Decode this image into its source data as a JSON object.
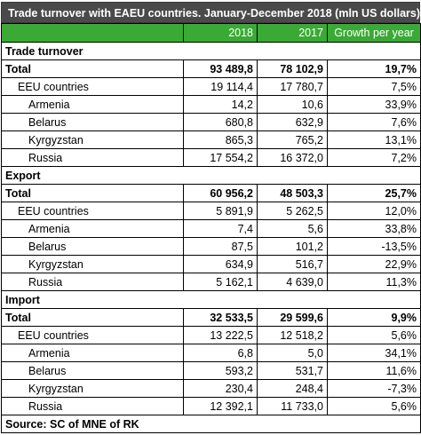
{
  "title": "Trade turnover with EAEU countries. January-December 2018 (mln US dollars)",
  "columns": [
    "",
    "2018",
    "2017",
    "Growth per year"
  ],
  "sections": [
    {
      "name": "Trade turnover",
      "rows": [
        {
          "label": "Total",
          "y2018": "93 489,8",
          "y2017": "78 102,9",
          "growth": "19,7%"
        },
        {
          "label": "EEU countries",
          "y2018": "19 114,4",
          "y2017": "17 780,7",
          "growth": "7,5%"
        },
        {
          "label": "Armenia",
          "y2018": "14,2",
          "y2017": "10,6",
          "growth": "33,9%"
        },
        {
          "label": "Belarus",
          "y2018": "680,8",
          "y2017": "632,9",
          "growth": "7,6%"
        },
        {
          "label": "Kyrgyzstan",
          "y2018": "865,3",
          "y2017": "765,2",
          "growth": "13,1%"
        },
        {
          "label": "Russia",
          "y2018": "17 554,2",
          "y2017": "16 372,0",
          "growth": "7,2%"
        }
      ]
    },
    {
      "name": "Export",
      "rows": [
        {
          "label": "Total",
          "y2018": "60 956,2",
          "y2017": "48 503,3",
          "growth": "25,7%"
        },
        {
          "label": "EEU countries",
          "y2018": "5 891,9",
          "y2017": "5 262,5",
          "growth": "12,0%"
        },
        {
          "label": "Armenia",
          "y2018": "7,4",
          "y2017": "5,6",
          "growth": "33,8%"
        },
        {
          "label": "Belarus",
          "y2018": "87,5",
          "y2017": "101,2",
          "growth": "-13,5%"
        },
        {
          "label": "Kyrgyzstan",
          "y2018": "634,9",
          "y2017": "516,7",
          "growth": "22,9%"
        },
        {
          "label": "Russia",
          "y2018": "5 162,1",
          "y2017": "4 639,0",
          "growth": "11,3%"
        }
      ]
    },
    {
      "name": "Import",
      "rows": [
        {
          "label": "Total",
          "y2018": "32 533,5",
          "y2017": "29 599,6",
          "growth": "9,9%"
        },
        {
          "label": "EEU countries",
          "y2018": "13 222,5",
          "y2017": "12 518,2",
          "growth": "5,6%"
        },
        {
          "label": "Armenia",
          "y2018": "6,8",
          "y2017": "5,0",
          "growth": "34,1%"
        },
        {
          "label": "Belarus",
          "y2018": "593,2",
          "y2017": "531,7",
          "growth": "11,6%"
        },
        {
          "label": "Kyrgyzstan",
          "y2018": "230,4",
          "y2017": "248,4",
          "growth": "-7,3%"
        },
        {
          "label": "Russia",
          "y2018": "12 392,1",
          "y2017": "11 733,0",
          "growth": "5,6%"
        }
      ]
    }
  ],
  "source": "Source: SC of MNE of RK",
  "colors": {
    "title_bg": "#4a4a4a",
    "header_bg": "#3aa935"
  }
}
